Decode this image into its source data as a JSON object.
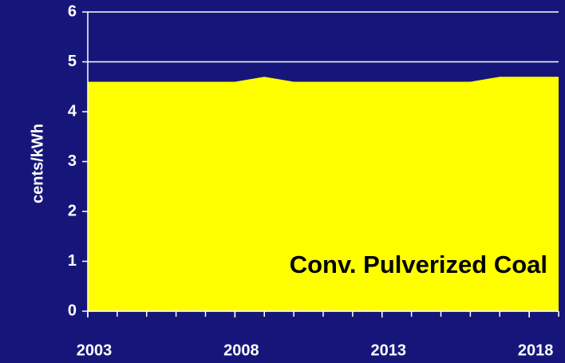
{
  "chart_data": {
    "type": "area",
    "y_label": "cents/kWh",
    "annotation": "Conv. Pulverized Coal",
    "x": [
      2003,
      2004,
      2005,
      2006,
      2007,
      2008,
      2009,
      2010,
      2011,
      2012,
      2013,
      2014,
      2015,
      2016,
      2017,
      2018,
      2019
    ],
    "values": [
      4.6,
      4.6,
      4.6,
      4.6,
      4.6,
      4.6,
      4.7,
      4.6,
      4.6,
      4.6,
      4.6,
      4.6,
      4.6,
      4.6,
      4.7,
      4.7,
      4.7
    ],
    "color": "#ffff00",
    "xlim": [
      2003,
      2019
    ],
    "xticks": [
      2003,
      2008,
      2013,
      2018
    ],
    "ylim": [
      0,
      6
    ],
    "yticks": [
      0,
      1,
      2,
      3,
      4,
      5,
      6
    ],
    "grid": true
  }
}
